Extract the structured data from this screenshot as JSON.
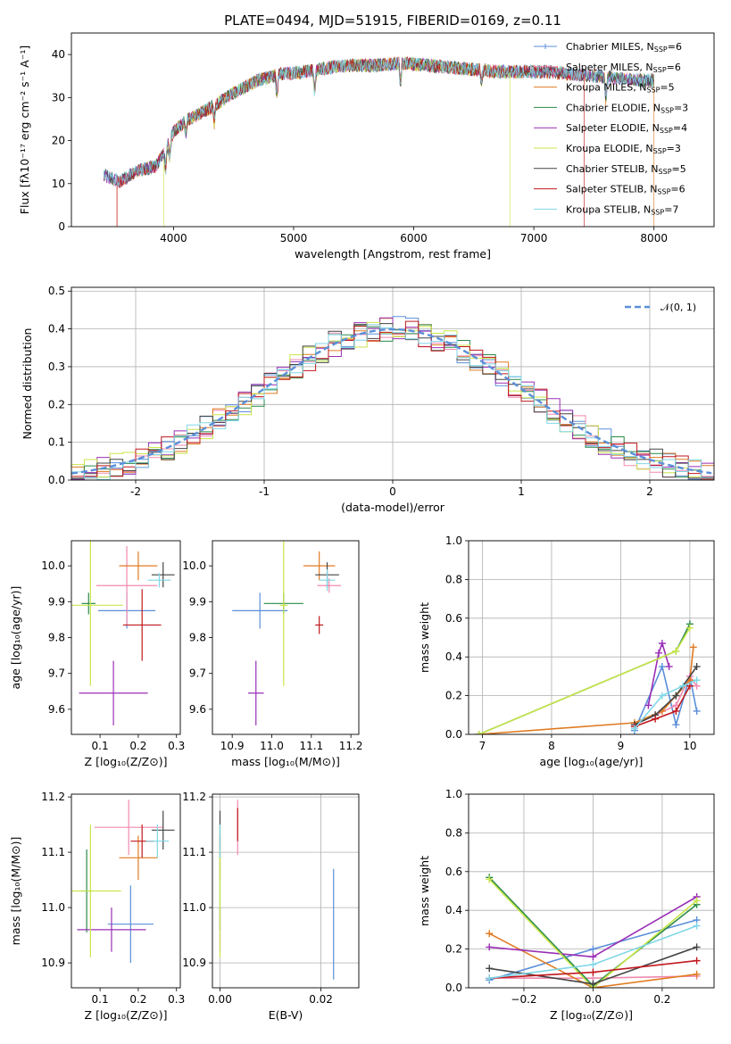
{
  "chart_data": [
    {
      "type": "line",
      "title": "PLATE=0494, MJD=51915, FIBERID=0169, z=0.11",
      "xlabel": "wavelength [Angstrom, rest frame]",
      "ylabel": "Flux [fλ10⁻¹⁷ erg cm⁻² s⁻¹ A⁻¹]",
      "xlim": [
        3150,
        8500
      ],
      "ylim": [
        0,
        45
      ],
      "xticks": [
        4000,
        5000,
        6000,
        7000,
        8000
      ],
      "yticks": [
        0,
        10,
        20,
        30,
        40
      ],
      "legend_position": "top-right",
      "series": [
        {
          "name": "Chabrier MILES, N_SSP=6",
          "color": "#5b8fd9"
        },
        {
          "name": "Salpeter MILES, N_SSP=6",
          "color": "#f08ab0"
        },
        {
          "name": "Kroupa MILES, N_SSP=5",
          "color": "#e07b22"
        },
        {
          "name": "Chabrier ELODIE, N_SSP=3",
          "color": "#2a8a4a"
        },
        {
          "name": "Salpeter ELODIE, N_SSP=4",
          "color": "#9a2fb5"
        },
        {
          "name": "Kroupa ELODIE, N_SSP=3",
          "color": "#c9e64a"
        },
        {
          "name": "Chabrier STELIB, N_SSP=5",
          "color": "#444444"
        },
        {
          "name": "Salpeter STELIB, N_SSP=6",
          "color": "#c0181e"
        },
        {
          "name": "Kroupa STELIB, N_SSP=7",
          "color": "#7fd6e6"
        }
      ],
      "spectrum_anchor_points": {
        "wavelength": [
          3420,
          3550,
          3700,
          3850,
          3920,
          4000,
          4100,
          4200,
          4300,
          4500,
          4700,
          4900,
          5100,
          5300,
          5500,
          5700,
          5900,
          6100,
          6300,
          6500,
          6700,
          6900,
          7100,
          7300,
          7500,
          7700,
          7900,
          8000
        ],
        "flux": [
          12,
          10.5,
          13,
          14,
          17,
          22,
          24.5,
          26,
          27.5,
          31,
          34,
          35.5,
          36,
          37,
          37.5,
          37.5,
          38,
          37.5,
          37,
          36.5,
          36,
          36,
          36,
          35.5,
          35,
          34.5,
          34,
          34
        ]
      }
    },
    {
      "type": "histogram",
      "xlabel": "(data-model)/error",
      "ylabel": "Normed distribution",
      "xlim": [
        -2.5,
        2.5
      ],
      "ylim": [
        0,
        0.51
      ],
      "xticks": [
        -2,
        -1,
        0,
        1,
        2
      ],
      "yticks": [
        0.0,
        0.1,
        0.2,
        0.3,
        0.4,
        0.5
      ],
      "grid": true,
      "legend_position": "top-right",
      "legend": [
        "𝒩(0, 1)"
      ],
      "reference_curve": {
        "name": "𝒩(0, 1)",
        "mean": 0,
        "sigma": 1,
        "color": "#5b8fd9",
        "style": "dashed"
      },
      "bin_width": 0.1
    },
    {
      "type": "scatter",
      "xlabel": "Z [log₁₀(Z/Z⊙)]",
      "ylabel": "age  [log₁₀(age/yr)]",
      "xlim": [
        0.025,
        0.31
      ],
      "ylim": [
        9.53,
        10.07
      ],
      "xticks": [
        0.1,
        0.2,
        0.3
      ],
      "yticks": [
        9.6,
        9.7,
        9.8,
        9.9,
        10.0
      ],
      "points": [
        {
          "color": "#5b8fd9",
          "x": 0.17,
          "y": 9.875,
          "xerr": 0.075,
          "yerr": 0.05
        },
        {
          "color": "#f08ab0",
          "x": 0.17,
          "y": 9.945,
          "xerr": 0.08,
          "yerr": 0.11
        },
        {
          "color": "#e07b22",
          "x": 0.2,
          "y": 10.0,
          "xerr": 0.05,
          "yerr": 0.04
        },
        {
          "color": "#2a8a4a",
          "x": 0.07,
          "y": 9.895,
          "xerr": 0.018,
          "yerr": 0.03
        },
        {
          "color": "#9a2fb5",
          "x": 0.135,
          "y": 9.645,
          "xerr": 0.09,
          "yerr": 0.09
        },
        {
          "color": "#c9e64a",
          "x": 0.075,
          "y": 9.89,
          "xerr": 0.085,
          "yerr": 0.225
        },
        {
          "color": "#444444",
          "x": 0.265,
          "y": 9.975,
          "xerr": 0.03,
          "yerr": 0.035
        },
        {
          "color": "#c0181e",
          "x": 0.21,
          "y": 9.835,
          "xerr": 0.05,
          "yerr": 0.1
        },
        {
          "color": "#7fd6e6",
          "x": 0.255,
          "y": 9.96,
          "xerr": 0.03,
          "yerr": 0.02
        }
      ]
    },
    {
      "type": "scatter",
      "xlabel": "mass [log₁₀(M/M⊙)]",
      "ylabel": "",
      "xlim": [
        10.85,
        11.22
      ],
      "ylim": [
        9.53,
        10.07
      ],
      "xticks": [
        10.9,
        11.0,
        11.1,
        11.2
      ],
      "yticks": [
        9.6,
        9.7,
        9.8,
        9.9,
        10.0
      ],
      "points": [
        {
          "color": "#5b8fd9",
          "x": 10.97,
          "y": 9.875,
          "xerr": 0.07,
          "yerr": 0.05
        },
        {
          "color": "#f08ab0",
          "x": 11.145,
          "y": 9.945,
          "xerr": 0.03,
          "yerr": 0.02
        },
        {
          "color": "#e07b22",
          "x": 11.12,
          "y": 10.0,
          "xerr": 0.04,
          "yerr": 0.04
        },
        {
          "color": "#2a8a4a",
          "x": 11.03,
          "y": 9.895,
          "xerr": 0.05,
          "yerr": 0.03
        },
        {
          "color": "#9a2fb5",
          "x": 10.96,
          "y": 9.645,
          "xerr": 0.02,
          "yerr": 0.09
        },
        {
          "color": "#c9e64a",
          "x": 11.03,
          "y": 9.89,
          "xerr": 0.01,
          "yerr": 0.225
        },
        {
          "color": "#444444",
          "x": 11.14,
          "y": 9.975,
          "xerr": 0.03,
          "yerr": 0.035
        },
        {
          "color": "#c0181e",
          "x": 11.12,
          "y": 9.835,
          "xerr": 0.01,
          "yerr": 0.025
        },
        {
          "color": "#7fd6e6",
          "x": 11.14,
          "y": 9.96,
          "xerr": 0.02,
          "yerr": 0.03
        }
      ]
    },
    {
      "type": "line",
      "xlabel": "age  [log₁₀(age/yr)]",
      "ylabel": "mass weight",
      "xlim": [
        6.8,
        10.35
      ],
      "ylim": [
        0,
        1
      ],
      "xticks": [
        7,
        8,
        9,
        10
      ],
      "yticks": [
        0.0,
        0.2,
        0.4,
        0.6,
        0.8,
        1.0
      ],
      "grid": true,
      "series": [
        {
          "color": "#5b8fd9",
          "x": [
            9.2,
            9.6,
            9.8,
            10.0,
            10.1
          ],
          "y": [
            0.02,
            0.35,
            0.05,
            0.3,
            0.12
          ]
        },
        {
          "color": "#f08ab0",
          "x": [
            9.2,
            9.5,
            9.8,
            10.0,
            10.1
          ],
          "y": [
            0.05,
            0.1,
            0.15,
            0.3,
            0.25
          ]
        },
        {
          "color": "#e07b22",
          "x": [
            6.95,
            9.2,
            9.6,
            9.8,
            10.0,
            10.05
          ],
          "y": [
            0.0,
            0.06,
            0.12,
            0.2,
            0.28,
            0.45
          ]
        },
        {
          "color": "#2a8a4a",
          "x": [
            6.95,
            9.8,
            10.0
          ],
          "y": [
            0.0,
            0.43,
            0.57
          ]
        },
        {
          "color": "#9a2fb5",
          "x": [
            9.4,
            9.55,
            9.6,
            9.7
          ],
          "y": [
            0.15,
            0.42,
            0.47,
            0.35
          ]
        },
        {
          "color": "#c9e64a",
          "x": [
            6.95,
            9.8,
            10.0
          ],
          "y": [
            0.0,
            0.43,
            0.55
          ]
        },
        {
          "color": "#444444",
          "x": [
            9.2,
            9.5,
            9.8,
            10.1
          ],
          "y": [
            0.05,
            0.1,
            0.2,
            0.35
          ]
        },
        {
          "color": "#c0181e",
          "x": [
            9.2,
            9.5,
            9.8,
            10.0
          ],
          "y": [
            0.04,
            0.08,
            0.12,
            0.25
          ]
        },
        {
          "color": "#7fd6e6",
          "x": [
            9.2,
            9.6,
            9.9,
            10.1
          ],
          "y": [
            0.03,
            0.2,
            0.25,
            0.28
          ]
        }
      ]
    },
    {
      "type": "scatter",
      "xlabel": "Z [log₁₀(Z/Z⊙)]",
      "ylabel": "mass [log₁₀(M/M⊙)]",
      "xlim": [
        0.025,
        0.31
      ],
      "ylim": [
        10.855,
        11.205
      ],
      "xticks": [
        0.1,
        0.2,
        0.3
      ],
      "yticks": [
        10.9,
        11.0,
        11.1,
        11.2
      ],
      "points": [
        {
          "color": "#5b8fd9",
          "x": 0.18,
          "y": 10.97,
          "xerr": 0.06,
          "yerr": 0.07
        },
        {
          "color": "#f08ab0",
          "x": 0.175,
          "y": 11.145,
          "xerr": 0.09,
          "yerr": 0.05
        },
        {
          "color": "#e07b22",
          "x": 0.2,
          "y": 11.09,
          "xerr": 0.05,
          "yerr": 0.04
        },
        {
          "color": "#2a8a4a",
          "x": 0.065,
          "y": 11.03,
          "xerr": 0.015,
          "yerr": 0.075
        },
        {
          "color": "#9a2fb5",
          "x": 0.13,
          "y": 10.96,
          "xerr": 0.09,
          "yerr": 0.04
        },
        {
          "color": "#c9e64a",
          "x": 0.075,
          "y": 11.03,
          "xerr": 0.08,
          "yerr": 0.12
        },
        {
          "color": "#444444",
          "x": 0.265,
          "y": 11.14,
          "xerr": 0.03,
          "yerr": 0.035
        },
        {
          "color": "#c0181e",
          "x": 0.21,
          "y": 11.12,
          "xerr": 0.03,
          "yerr": 0.03
        },
        {
          "color": "#7fd6e6",
          "x": 0.25,
          "y": 11.12,
          "xerr": 0.03,
          "yerr": 0.03
        }
      ]
    },
    {
      "type": "scatter",
      "xlabel": "E(B-V)",
      "ylabel": "",
      "xlim": [
        -0.0015,
        0.0275
      ],
      "ylim": [
        10.855,
        11.205
      ],
      "xticks": [
        0.0,
        0.02
      ],
      "yticks": [
        10.9,
        11.0,
        11.1,
        11.2
      ],
      "grid": true,
      "points": [
        {
          "color": "#5b8fd9",
          "x": 0.0225,
          "y": 10.97,
          "xerr": 0,
          "yerr": 0.1
        },
        {
          "color": "#f08ab0",
          "x": 0.0035,
          "y": 11.145,
          "xerr": 0,
          "yerr": 0.05
        },
        {
          "color": "#e07b22",
          "x": 0.0,
          "y": 11.09,
          "xerr": 0,
          "yerr": 0.04
        },
        {
          "color": "#2a8a4a",
          "x": 0.0,
          "y": 11.03,
          "xerr": 0,
          "yerr": 0.07
        },
        {
          "color": "#9a2fb5",
          "x": 0.0,
          "y": 10.96,
          "xerr": 0,
          "yerr": 0.04
        },
        {
          "color": "#c9e64a",
          "x": 0.0,
          "y": 11.03,
          "xerr": 0,
          "yerr": 0.12
        },
        {
          "color": "#444444",
          "x": 0.0,
          "y": 11.14,
          "xerr": 0,
          "yerr": 0.035
        },
        {
          "color": "#c0181e",
          "x": 0.0035,
          "y": 11.15,
          "xerr": 0,
          "yerr": 0.03
        },
        {
          "color": "#7fd6e6",
          "x": 0.0,
          "y": 11.12,
          "xerr": 0,
          "yerr": 0.03
        }
      ]
    },
    {
      "type": "line",
      "xlabel": "Z [log₁₀(Z/Z⊙)]",
      "ylabel": "mass weight",
      "xlim": [
        -0.36,
        0.35
      ],
      "ylim": [
        0,
        1
      ],
      "xticks": [
        -0.2,
        0.0,
        0.2
      ],
      "yticks": [
        0.0,
        0.2,
        0.4,
        0.6,
        0.8,
        1.0
      ],
      "grid": true,
      "series": [
        {
          "color": "#5b8fd9",
          "x": [
            -0.3,
            0.0,
            0.3
          ],
          "y": [
            0.04,
            0.2,
            0.35
          ]
        },
        {
          "color": "#f08ab0",
          "x": [
            -0.3,
            0.0,
            0.3
          ],
          "y": [
            0.05,
            0.05,
            0.06
          ]
        },
        {
          "color": "#e07b22",
          "x": [
            -0.3,
            0.0,
            0.3
          ],
          "y": [
            0.28,
            0.0,
            0.07
          ]
        },
        {
          "color": "#2a8a4a",
          "x": [
            -0.3,
            0.0,
            0.3
          ],
          "y": [
            0.57,
            0.01,
            0.43
          ]
        },
        {
          "color": "#9a2fb5",
          "x": [
            -0.3,
            0.0,
            0.3
          ],
          "y": [
            0.21,
            0.16,
            0.47
          ]
        },
        {
          "color": "#c9e64a",
          "x": [
            -0.3,
            0.0,
            0.3
          ],
          "y": [
            0.56,
            0.0,
            0.45
          ]
        },
        {
          "color": "#444444",
          "x": [
            -0.3,
            0.0,
            0.3
          ],
          "y": [
            0.1,
            0.02,
            0.21
          ]
        },
        {
          "color": "#c0181e",
          "x": [
            -0.3,
            0.0,
            0.3
          ],
          "y": [
            0.05,
            0.08,
            0.14
          ]
        },
        {
          "color": "#7fd6e6",
          "x": [
            -0.3,
            0.0,
            0.3
          ],
          "y": [
            0.05,
            0.12,
            0.32
          ]
        }
      ]
    }
  ]
}
